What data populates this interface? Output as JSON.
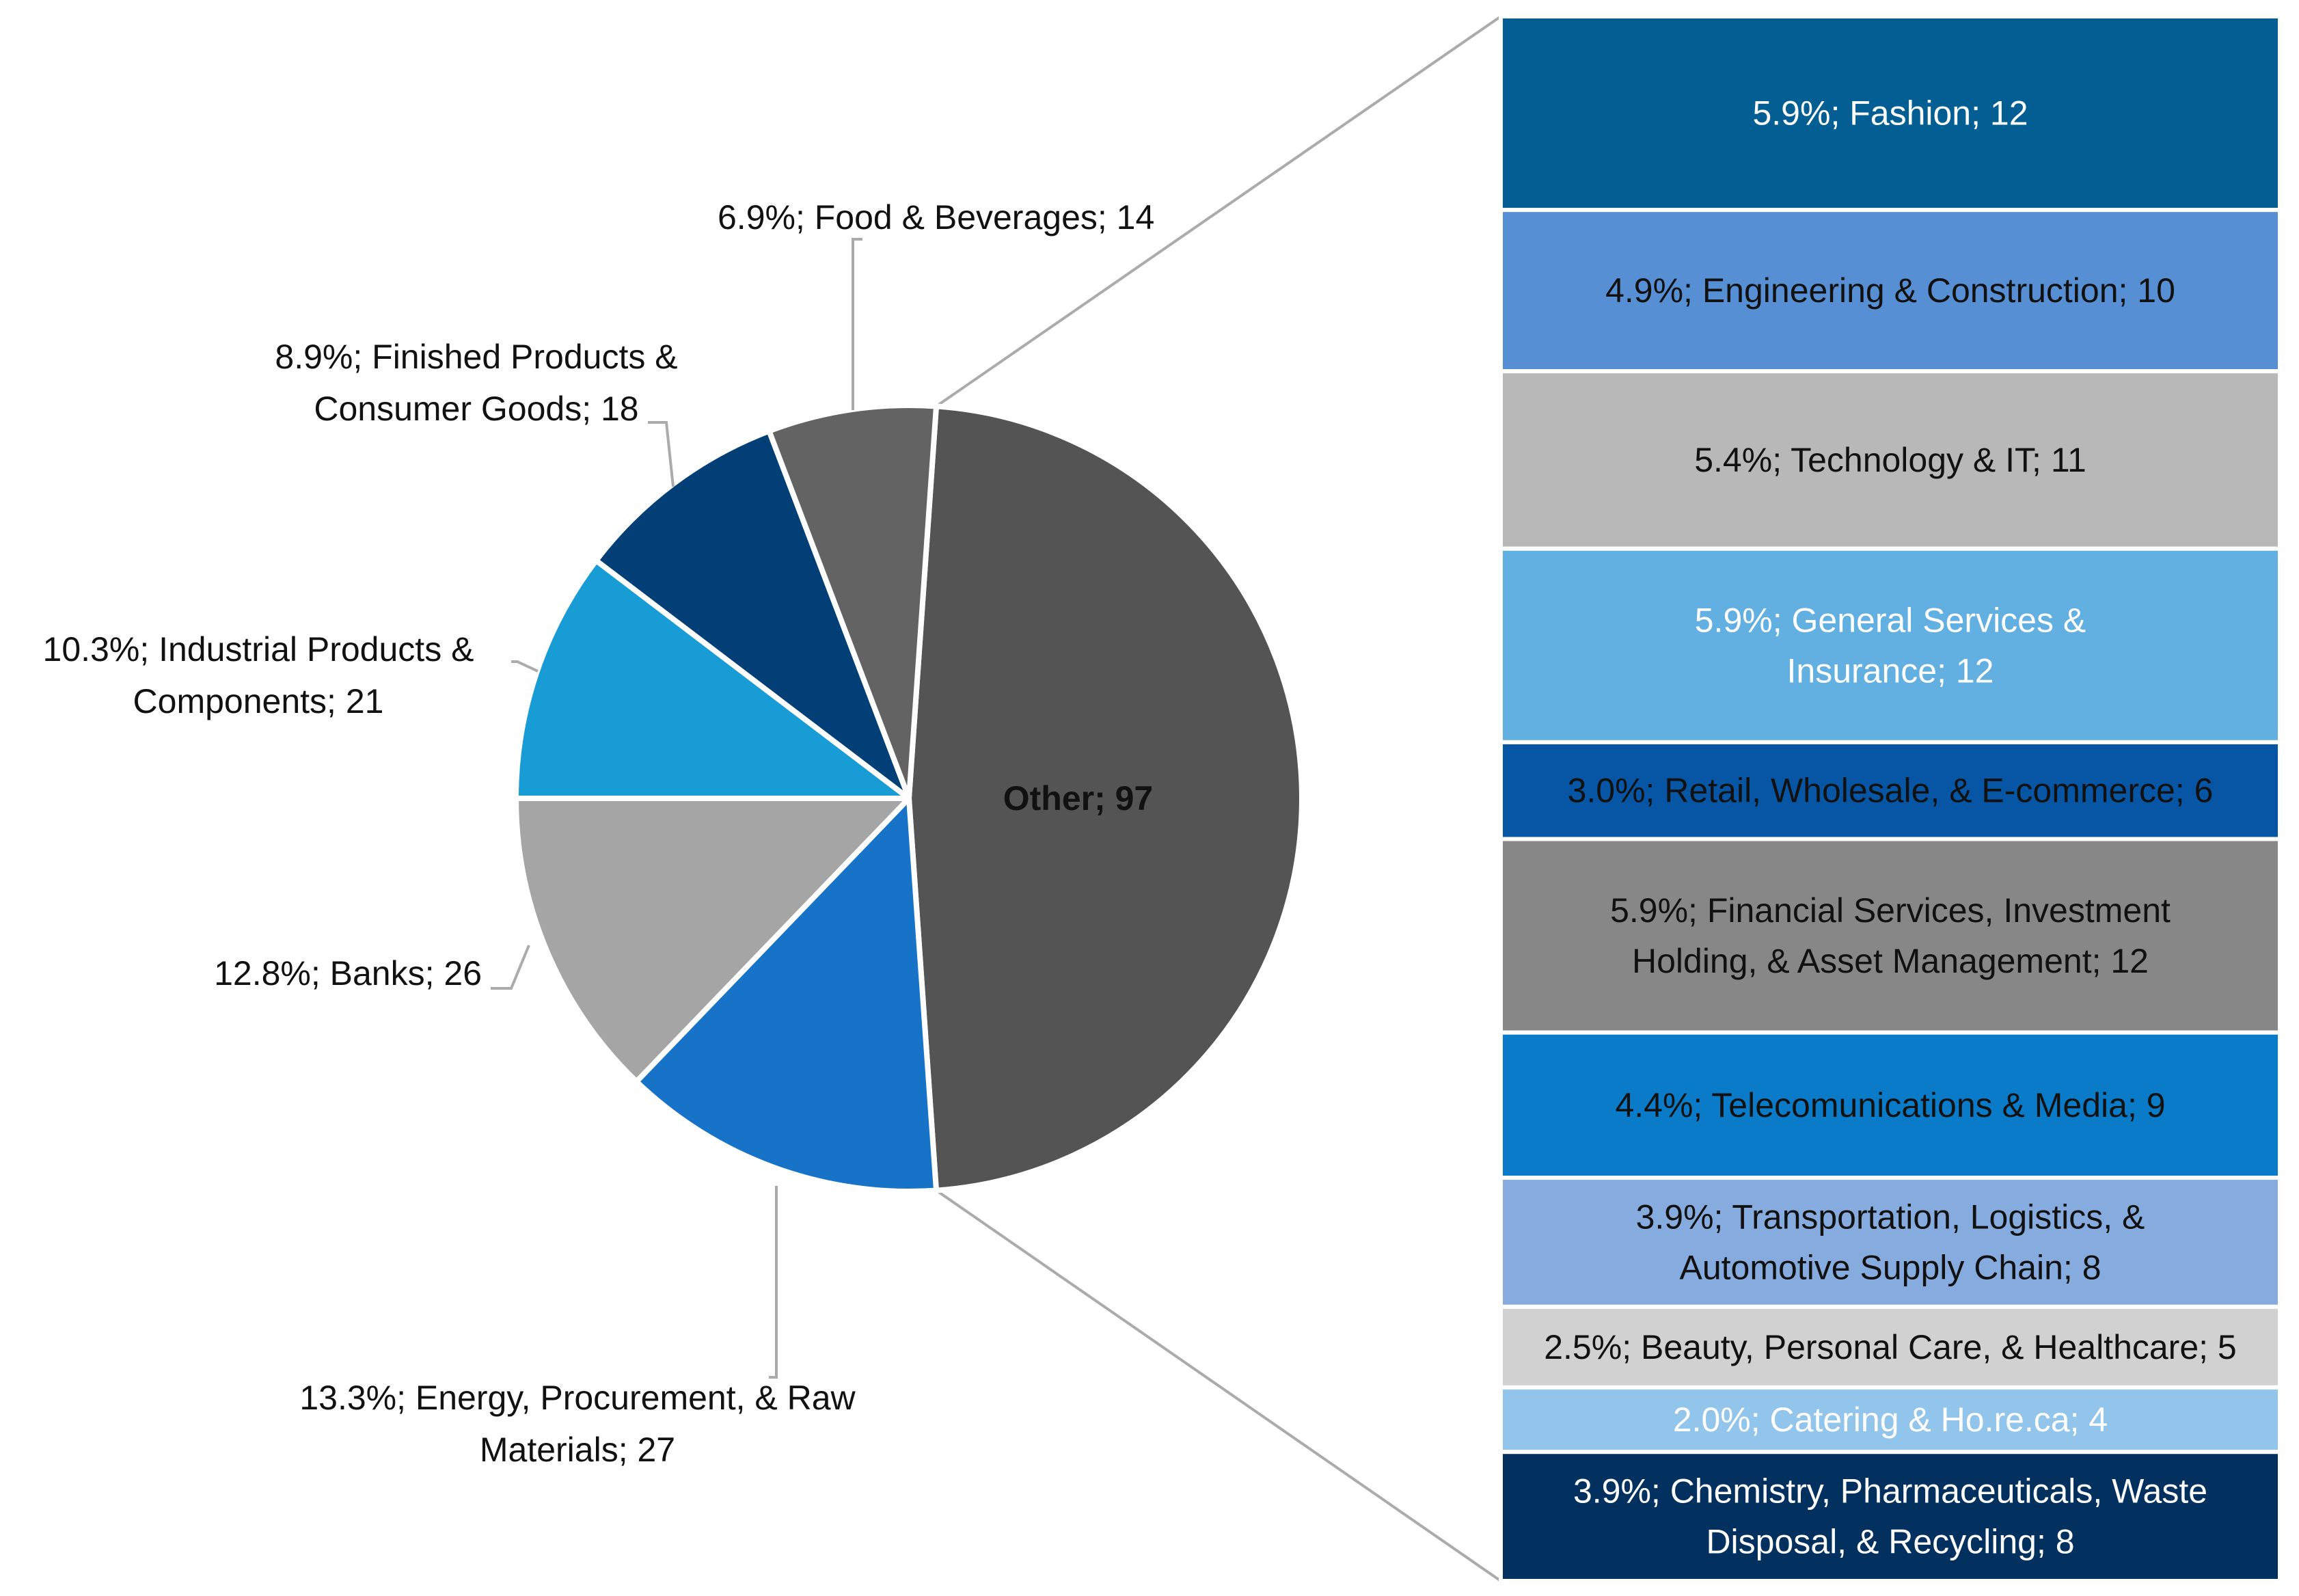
{
  "chart_data": {
    "type": "bar-of-pie",
    "pie": {
      "slices": [
        {
          "label": "Other",
          "value": 97,
          "color": "#545454",
          "text": "Other; 97"
        },
        {
          "label": "Energy, Procurement, & Raw Materials",
          "value": 27,
          "percent": 13.3,
          "color": "#1673C8",
          "text": [
            "13.3%; Energy, Procurement, & Raw",
            "Materials; 27"
          ]
        },
        {
          "label": "Banks",
          "value": 26,
          "percent": 12.8,
          "color": "#A5A5A5",
          "text": [
            "12.8%; Banks; 26"
          ]
        },
        {
          "label": "Industrial Products & Components",
          "value": 21,
          "percent": 10.3,
          "color": "#179CD6",
          "text": [
            "10.3%; Industrial Products &",
            "Components; 21"
          ]
        },
        {
          "label": "Finished Products & Consumer Goods",
          "value": 18,
          "percent": 8.9,
          "color": "#023F77",
          "text": [
            "8.9%; Finished Products &",
            "Consumer Goods; 18"
          ]
        },
        {
          "label": "Food & Beverages",
          "value": 14,
          "percent": 6.9,
          "color": "#636363",
          "text": [
            "6.9%; Food & Beverages; 14"
          ]
        }
      ]
    },
    "bar": {
      "segments": [
        {
          "label": "Fashion",
          "value": 12,
          "percent": 5.9,
          "color": "#035F93",
          "text_color": "#FFFFFF",
          "text": [
            "5.9%; Fashion; 12"
          ]
        },
        {
          "label": "Engineering & Construction",
          "value": 10,
          "percent": 4.9,
          "color": "#568FD4",
          "text_color": "#111111",
          "text": [
            "4.9%; Engineering & Construction; 10"
          ]
        },
        {
          "label": "Technology & IT",
          "value": 11,
          "percent": 5.4,
          "color": "#B8B8B8",
          "text_color": "#111111",
          "text": [
            "5.4%; Technology & IT; 11"
          ]
        },
        {
          "label": "General Services & Insurance",
          "value": 12,
          "percent": 5.9,
          "color": "#62AFE1",
          "text_color": "#FFFFFF",
          "text": [
            "5.9%; General Services &",
            "Insurance; 12"
          ]
        },
        {
          "label": "Retail, Wholesale, & E-commerce",
          "value": 6,
          "percent": 3.0,
          "color": "#0756A5",
          "text_color": "#111111",
          "text": [
            "3.0%; Retail, Wholesale, & E-commerce; 6"
          ]
        },
        {
          "label": "Financial Services, Investment Holding, & Asset Management",
          "value": 12,
          "percent": 5.9,
          "color": "#878787",
          "text_color": "#111111",
          "text": [
            "5.9%; Financial Services, Investment",
            "Holding, & Asset Management; 12"
          ]
        },
        {
          "label": "Telecomunications & Media",
          "value": 9,
          "percent": 4.4,
          "color": "#0A7BC8",
          "text_color": "#111111",
          "text": [
            "4.4%; Telecomunications & Media; 9"
          ]
        },
        {
          "label": "Transportation, Logistics, & Automotive Supply Chain",
          "value": 8,
          "percent": 3.9,
          "color": "#85ABDF",
          "text_color": "#111111",
          "text": [
            "3.9%; Transportation, Logistics, &",
            "Automotive Supply Chain; 8"
          ]
        },
        {
          "label": "Beauty, Personal Care, & Healthcare",
          "value": 5,
          "percent": 2.5,
          "color": "#D1D1D1",
          "text_color": "#111111",
          "text": [
            "2.5%; Beauty, Personal Care, & Healthcare; 5"
          ]
        },
        {
          "label": "Catering & Ho.re.ca",
          "value": 4,
          "percent": 2.0,
          "color": "#92C5EB",
          "text_color": "#FFFFFF",
          "text": [
            "2.0%; Catering & Ho.re.ca; 4"
          ]
        },
        {
          "label": "Chemistry, Pharmaceuticals, Waste Disposal, & Recycling",
          "value": 8,
          "percent": 3.9,
          "color": "#02305F",
          "text_color": "#FFFFFF",
          "text": [
            "3.9%; Chemistry, Pharmaceuticals, Waste",
            "Disposal, & Recycling; 8"
          ]
        }
      ]
    }
  }
}
